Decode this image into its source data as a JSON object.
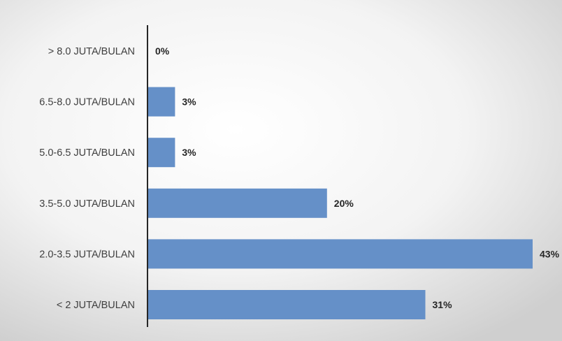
{
  "chart_data": {
    "type": "bar",
    "orientation": "horizontal",
    "title": "",
    "xlabel": "",
    "ylabel": "",
    "categories": [
      "> 8.0 JUTA/BULAN",
      "6.5-8.0 JUTA/BULAN",
      "5.0-6.5 JUTA/BULAN",
      "3.5-5.0 JUTA/BULAN",
      "2.0-3.5 JUTA/BULAN",
      "< 2 JUTA/BULAN"
    ],
    "values": [
      0,
      3,
      3,
      20,
      43,
      31
    ],
    "data_labels": [
      "0%",
      "3%",
      "3%",
      "20%",
      "43%",
      "31%"
    ],
    "unit": "%",
    "xlim": [
      0,
      43
    ],
    "grid": false,
    "legend": "none",
    "colors": {
      "bar": "#6590c8",
      "axis": "#262626",
      "background_light": "#ffffff",
      "background_dark": "#cfcfcf"
    }
  }
}
